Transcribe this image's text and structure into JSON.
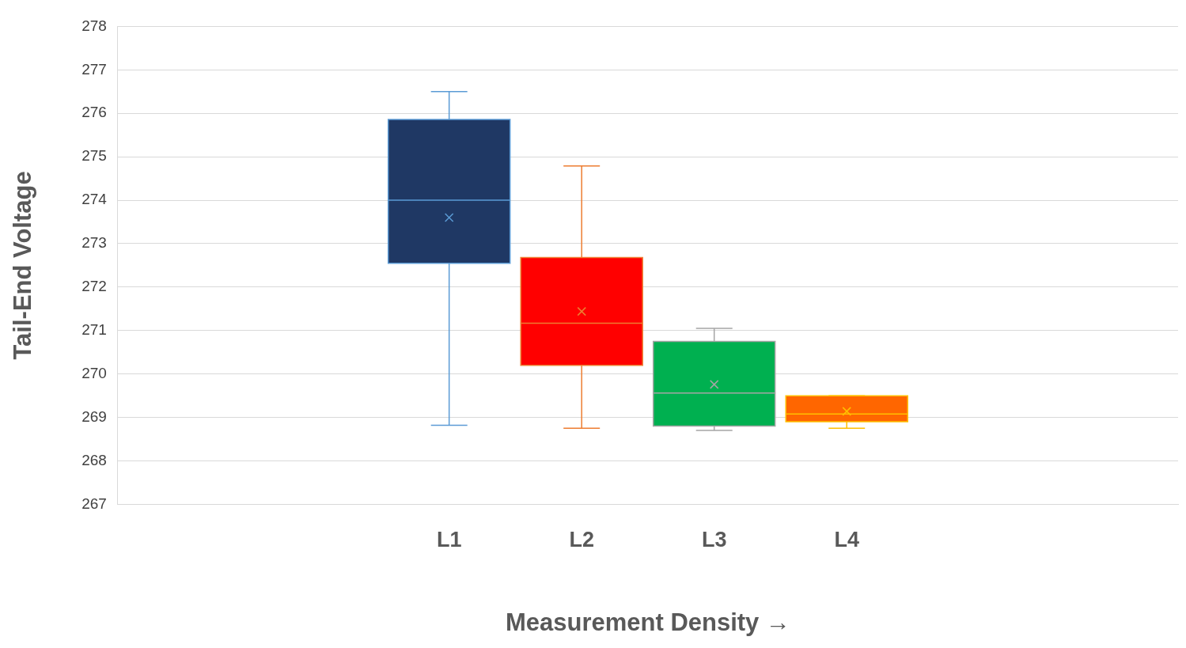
{
  "chart_data": {
    "type": "box",
    "xlabel": "Measurement Density →",
    "ylabel": "Tail-End Voltage",
    "categories": [
      null,
      null,
      "L1",
      "L2",
      "L3",
      "L4",
      null,
      null
    ],
    "colors": [
      null,
      null,
      "#1f3864",
      "#ff0000",
      "#00b050",
      "#ff6600",
      null,
      null
    ],
    "boxes": [
      null,
      null,
      {
        "low": 268.82,
        "q1": 272.55,
        "median": 274.0,
        "q3": 275.86,
        "high": 276.5,
        "mean": 273.6
      },
      {
        "low": 268.75,
        "q1": 270.2,
        "median": 271.17,
        "q3": 272.68,
        "high": 274.79,
        "mean": 271.44
      },
      {
        "low": 268.7,
        "q1": 268.8,
        "median": 269.56,
        "q3": 270.75,
        "high": 271.05,
        "mean": 269.76
      },
      {
        "low": 268.75,
        "q1": 268.9,
        "median": 269.08,
        "q3": 269.5,
        "high": 269.5,
        "mean": 269.14
      },
      null,
      null
    ],
    "ylim": [
      267,
      278
    ],
    "yticks": [
      267,
      268,
      269,
      270,
      271,
      272,
      273,
      274,
      275,
      276,
      277,
      278
    ],
    "grid": "y"
  }
}
